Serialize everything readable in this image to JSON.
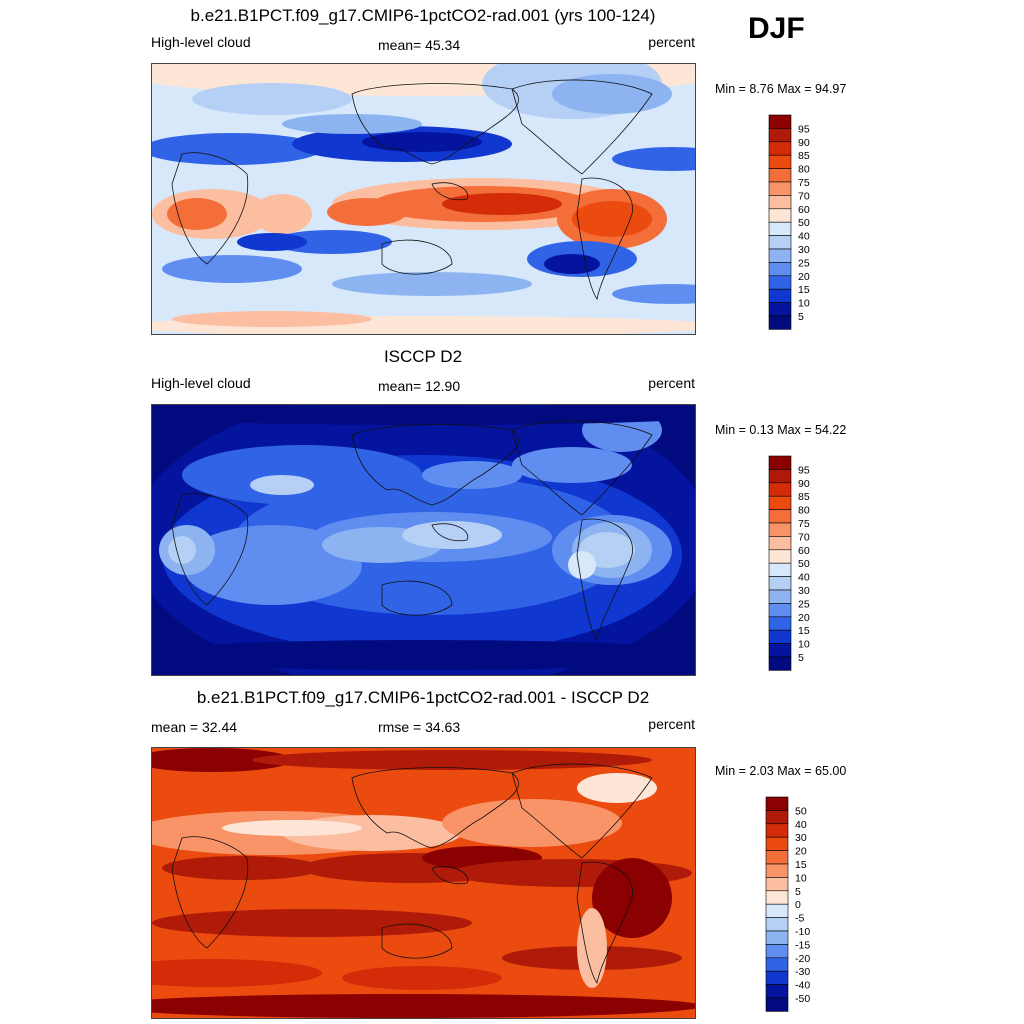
{
  "season": "DJF",
  "panels": [
    {
      "title": "b.e21.B1PCT.f09_g17.CMIP6-1pctCO2-rad.001 (yrs 100-124)",
      "left": "High-level cloud",
      "center": "mean=  45.34",
      "right": "percent",
      "minmax": "Min =   8.76 Max =  94.97",
      "scheme": "model",
      "levels": [
        "95",
        "90",
        "85",
        "80",
        "75",
        "70",
        "60",
        "50",
        "40",
        "30",
        "25",
        "20",
        "15",
        "10",
        "5"
      ],
      "colors": [
        "#8b0000",
        "#b01a08",
        "#d42c08",
        "#ec4b10",
        "#f46e3a",
        "#f99468",
        "#fcbea0",
        "#fde6d6",
        "#d7e8fb",
        "#b5cff5",
        "#8db4f0",
        "#5f8ef0",
        "#3163e6",
        "#1038d0",
        "#04149e",
        "#020a80"
      ]
    },
    {
      "title": "ISCCP D2",
      "left": "High-level cloud",
      "center": "mean=  12.90",
      "right": "percent",
      "minmax": "Min =   0.13 Max =  54.22",
      "scheme": "obs",
      "levels": [
        "95",
        "90",
        "85",
        "80",
        "75",
        "70",
        "60",
        "50",
        "40",
        "30",
        "25",
        "20",
        "15",
        "10",
        "5"
      ],
      "colors": [
        "#8b0000",
        "#b01a08",
        "#d42c08",
        "#ec4b10",
        "#f46e3a",
        "#f99468",
        "#fcbea0",
        "#fde6d6",
        "#d7e8fb",
        "#b5cff5",
        "#8db4f0",
        "#5f8ef0",
        "#3163e6",
        "#1038d0",
        "#04149e",
        "#020a80"
      ]
    },
    {
      "title": "b.e21.B1PCT.f09_g17.CMIP6-1pctCO2-rad.001 - ISCCP D2",
      "left": "mean =  32.44",
      "center": "rmse =  34.63",
      "right": "percent",
      "minmax": "Min =   2.03 Max =  65.00",
      "scheme": "diff",
      "levels": [
        "50",
        "40",
        "30",
        "20",
        "15",
        "10",
        "5",
        "0",
        "-5",
        "-10",
        "-15",
        "-20",
        "-30",
        "-40",
        "-50"
      ],
      "colors": [
        "#8b0000",
        "#b01a08",
        "#d42c08",
        "#ec4b10",
        "#f46e3a",
        "#f99468",
        "#fcbea0",
        "#fde6d6",
        "#d7e8fb",
        "#b5cff5",
        "#8db4f0",
        "#5f8ef0",
        "#3163e6",
        "#1038d0",
        "#04149e",
        "#020a80"
      ]
    }
  ]
}
